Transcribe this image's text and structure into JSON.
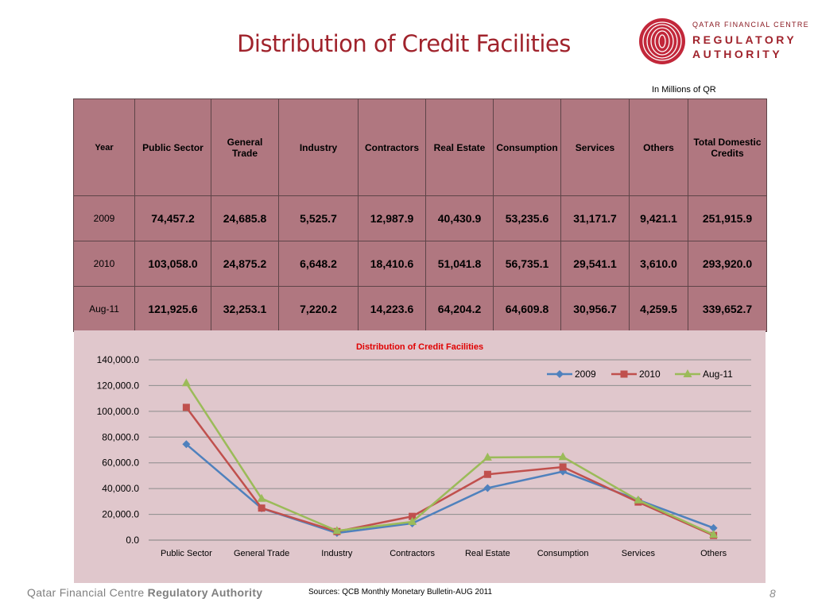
{
  "slide": {
    "title": "Distribution of Credit Facilities",
    "units_note": "In Millions of QR",
    "footer_org": "Qatar Financial Centre",
    "footer_org_bold": "Regulatory Authority",
    "source": "Sources: QCB Monthly Monetary Bulletin-AUG 2011",
    "page_number": "8"
  },
  "logo": {
    "line1": "QATAR FINANCIAL CENTRE",
    "line2": "REGULATORY",
    "line3": "AUTHORITY",
    "color": "#a0232c"
  },
  "table": {
    "headers": [
      "Year",
      "Public Sector",
      "General Trade",
      "Industry",
      "Contractors",
      "Real Estate",
      "Consumption",
      "Services",
      "Others",
      "Total Domestic Credits"
    ],
    "rows": [
      [
        "2009",
        "74,457.2",
        "24,685.8",
        "5,525.7",
        "12,987.9",
        "40,430.9",
        "53,235.6",
        "31,171.7",
        "9,421.1",
        "251,915.9"
      ],
      [
        "2010",
        "103,058.0",
        "24,875.2",
        "6,648.2",
        "18,410.6",
        "51,041.8",
        "56,735.1",
        "29,541.1",
        "3,610.0",
        "293,920.0"
      ],
      [
        "Aug-11",
        "121,925.6",
        "32,253.1",
        "7,220.2",
        "14,223.6",
        "64,204.2",
        "64,609.8",
        "30,956.7",
        "4,259.5",
        "339,652.7"
      ]
    ],
    "background_color": "#b07780"
  },
  "chart_data": {
    "type": "line",
    "title": "Distribution of Credit Facilities",
    "categories": [
      "Public Sector",
      "General Trade",
      "Industry",
      "Contractors",
      "Real Estate",
      "Consumption",
      "Services",
      "Others"
    ],
    "series": [
      {
        "name": "2009",
        "color": "#4f81bd",
        "marker": "diamond",
        "values": [
          74457.2,
          24685.8,
          5525.7,
          12987.9,
          40430.9,
          53235.6,
          31171.7,
          9421.1
        ]
      },
      {
        "name": "2010",
        "color": "#c0504d",
        "marker": "square",
        "values": [
          103058.0,
          24875.2,
          6648.2,
          18410.6,
          51041.8,
          56735.1,
          29541.1,
          3610.0
        ]
      },
      {
        "name": "Aug-11",
        "color": "#9bbb59",
        "marker": "triangle",
        "values": [
          121925.6,
          32253.1,
          7220.2,
          14223.6,
          64204.2,
          64609.8,
          30956.7,
          4259.5
        ]
      }
    ],
    "ylim": [
      0,
      140000
    ],
    "yticks": [
      "0.0",
      "20,000.0",
      "40,000.0",
      "60,000.0",
      "80,000.0",
      "100,000.0",
      "120,000.0",
      "140,000.0"
    ],
    "grid": true,
    "legend_position": "top-right",
    "title_color": "#e00000",
    "panel_color": "#e0c7cc"
  }
}
